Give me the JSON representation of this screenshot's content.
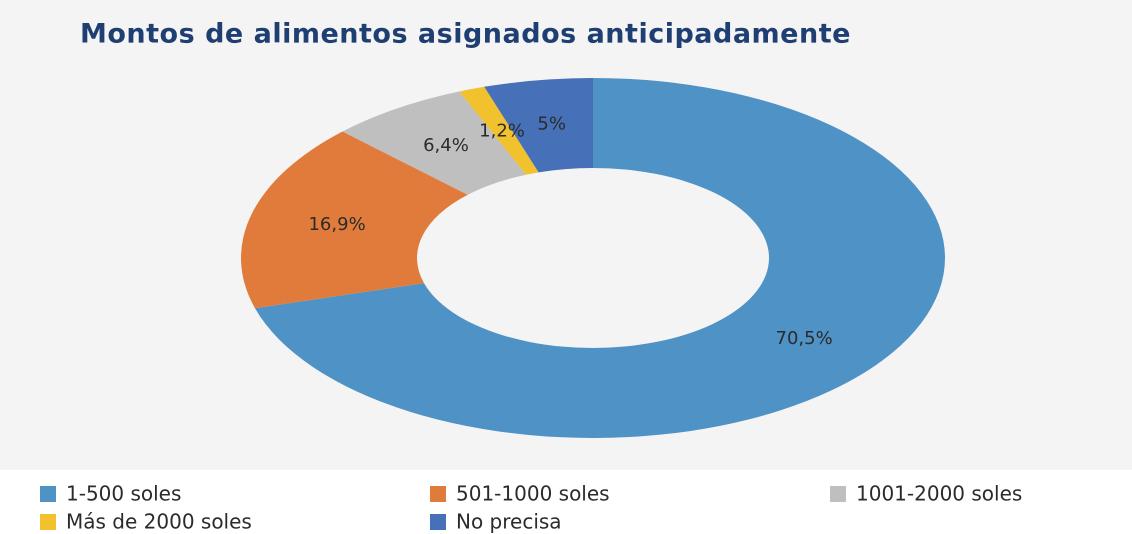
{
  "chart_data": {
    "type": "donut",
    "title": "Montos de alimentos asignados anticipadamente",
    "categories": [
      "1-500 soles",
      "501-1000 soles",
      "1001-2000 soles",
      "Más de 2000 soles",
      "No precisa"
    ],
    "values": [
      70.5,
      16.9,
      6.4,
      1.2,
      5
    ],
    "value_labels": [
      "70,5%",
      "16,9%",
      "6,4%",
      "1,2%",
      "5%"
    ],
    "colors": [
      "#4f92c6",
      "#e07b3b",
      "#bfbfbf",
      "#f2c12e",
      "#4670b8"
    ]
  }
}
